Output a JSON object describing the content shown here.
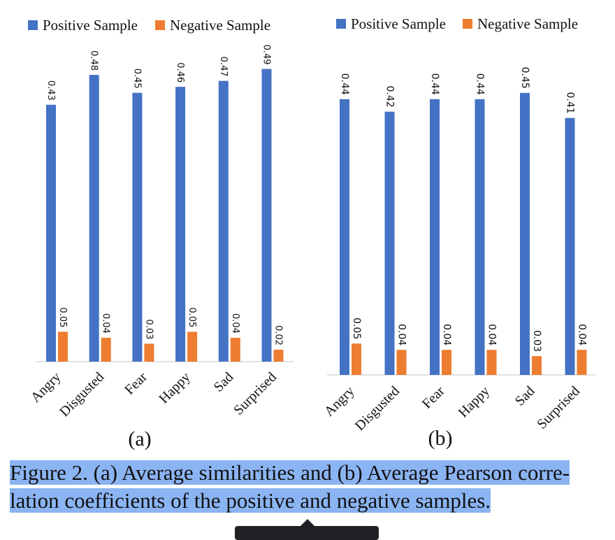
{
  "colors": {
    "positive": "#4472c4",
    "negative": "#ed7d31",
    "axis": "#d0d0d0",
    "caption_highlight": "#8bb4f2"
  },
  "chart_data": [
    {
      "type": "bar",
      "panel_label": "(a)",
      "categories": [
        "Angry",
        "Disgusted",
        "Fear",
        "Happy",
        "Sad",
        "Surprised"
      ],
      "series": [
        {
          "name": "Positive Sample",
          "values": [
            0.43,
            0.48,
            0.45,
            0.46,
            0.47,
            0.49
          ]
        },
        {
          "name": "Negative Sample",
          "values": [
            0.05,
            0.04,
            0.03,
            0.05,
            0.04,
            0.02
          ]
        }
      ],
      "data_labels": {
        "positive": [
          "0.43",
          "0.48",
          "0.45",
          "0.46",
          "0.47",
          "0.49"
        ],
        "negative": [
          "0.05",
          "0.04",
          "0.03",
          "0.05",
          "0.04",
          "0.02"
        ]
      },
      "ylim": [
        0,
        0.5
      ],
      "grid": false,
      "legend": "top"
    },
    {
      "type": "bar",
      "panel_label": "(b)",
      "categories": [
        "Angry",
        "Disgusted",
        "Fear",
        "Happy",
        "Sad",
        "Surprised"
      ],
      "series": [
        {
          "name": "Positive Sample",
          "values": [
            0.44,
            0.42,
            0.44,
            0.44,
            0.45,
            0.41
          ]
        },
        {
          "name": "Negative Sample",
          "values": [
            0.05,
            0.04,
            0.04,
            0.04,
            0.03,
            0.04
          ]
        }
      ],
      "data_labels": {
        "positive": [
          "0.44",
          "0.42",
          "0.44",
          "0.44",
          "0.45",
          "0.41"
        ],
        "negative": [
          "0.05",
          "0.04",
          "0.04",
          "0.04",
          "0.03",
          "0.04"
        ]
      },
      "ylim": [
        0,
        0.5
      ],
      "grid": false,
      "legend": "top"
    }
  ],
  "caption": {
    "line1": "Figure 2. (a) Average similarities and (b) Average Pearson corre-",
    "line2": "lation coefficients of the positive and negative samples."
  }
}
